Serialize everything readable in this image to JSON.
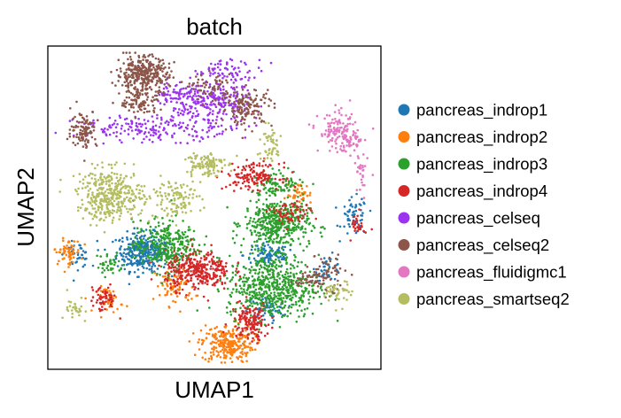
{
  "chart_data": {
    "type": "scatter",
    "title": "batch",
    "xlabel": "UMAP1",
    "ylabel": "UMAP2",
    "grid": false,
    "ticks": false,
    "xlim": [
      0,
      100
    ],
    "ylim": [
      0,
      100
    ],
    "legend_position": "right",
    "series": [
      {
        "name": "pancreas_indrop1",
        "color": "#1f77b4",
        "clusters": [
          [
            28,
            36,
            4,
            3,
            320
          ],
          [
            67,
            35,
            4,
            2,
            90
          ],
          [
            93,
            47,
            2,
            3,
            60
          ],
          [
            85,
            31,
            2,
            2,
            40
          ],
          [
            8,
            35,
            2,
            2,
            40
          ],
          [
            66,
            18,
            3,
            2,
            60
          ]
        ]
      },
      {
        "name": "pancreas_indrop2",
        "color": "#ff7f0e",
        "clusters": [
          [
            54,
            7,
            4,
            3,
            260
          ],
          [
            38,
            25,
            3,
            3,
            80
          ],
          [
            5,
            36,
            2,
            2,
            60
          ],
          [
            76,
            54,
            2,
            2,
            40
          ],
          [
            18,
            21,
            2,
            2,
            40
          ]
        ]
      },
      {
        "name": "pancreas_indrop3",
        "color": "#2ca02c",
        "clusters": [
          [
            69,
            45,
            5,
            4,
            440
          ],
          [
            68,
            25,
            7,
            5,
            560
          ],
          [
            35,
            38,
            5,
            4,
            320
          ],
          [
            70,
            58,
            4,
            2,
            90
          ],
          [
            18,
            32,
            2,
            2,
            40
          ],
          [
            62,
            28,
            2,
            6,
            20
          ]
        ]
      },
      {
        "name": "pancreas_indrop4",
        "color": "#d62728",
        "clusters": [
          [
            45,
            30,
            5,
            3,
            320
          ],
          [
            61,
            14,
            3,
            3,
            140
          ],
          [
            62,
            60,
            4,
            2,
            140
          ],
          [
            73,
            48,
            3,
            2,
            70
          ],
          [
            16,
            21,
            2,
            2,
            60
          ],
          [
            94,
            45,
            1,
            2,
            30
          ]
        ]
      },
      {
        "name": "pancreas_celseq",
        "color": "#9b33f0",
        "clusters": [
          [
            49,
            83,
            6,
            4,
            240
          ],
          [
            32,
            75,
            12,
            2,
            180
          ],
          [
            55,
            93,
            5,
            2,
            70
          ],
          [
            38,
            86,
            3,
            2,
            60
          ]
        ]
      },
      {
        "name": "pancreas_celseq2",
        "color": "#8c564b",
        "clusters": [
          [
            28,
            92,
            4,
            3,
            340
          ],
          [
            60,
            82,
            4,
            3,
            150
          ],
          [
            10,
            75,
            2,
            3,
            110
          ],
          [
            27,
            83,
            3,
            2,
            90
          ],
          [
            49,
            88,
            3,
            2,
            60
          ],
          [
            84,
            29,
            3,
            3,
            70
          ],
          [
            78,
            27,
            2,
            1,
            30
          ]
        ]
      },
      {
        "name": "pancreas_fluidigmc1",
        "color": "#e377c2",
        "clusters": [
          [
            88,
            74,
            3,
            3,
            120
          ],
          [
            92,
            71,
            2,
            2,
            40
          ],
          [
            95,
            60,
            1,
            4,
            30
          ]
        ]
      },
      {
        "name": "pancreas_smartseq2",
        "color": "#b5bd61",
        "clusters": [
          [
            18,
            54,
            5,
            4,
            380
          ],
          [
            38,
            53,
            4,
            3,
            120
          ],
          [
            47,
            64,
            3,
            2,
            110
          ],
          [
            67,
            70,
            2,
            3,
            50
          ],
          [
            88,
            23,
            2,
            2,
            40
          ],
          [
            8,
            18,
            2,
            2,
            30
          ]
        ]
      }
    ]
  }
}
